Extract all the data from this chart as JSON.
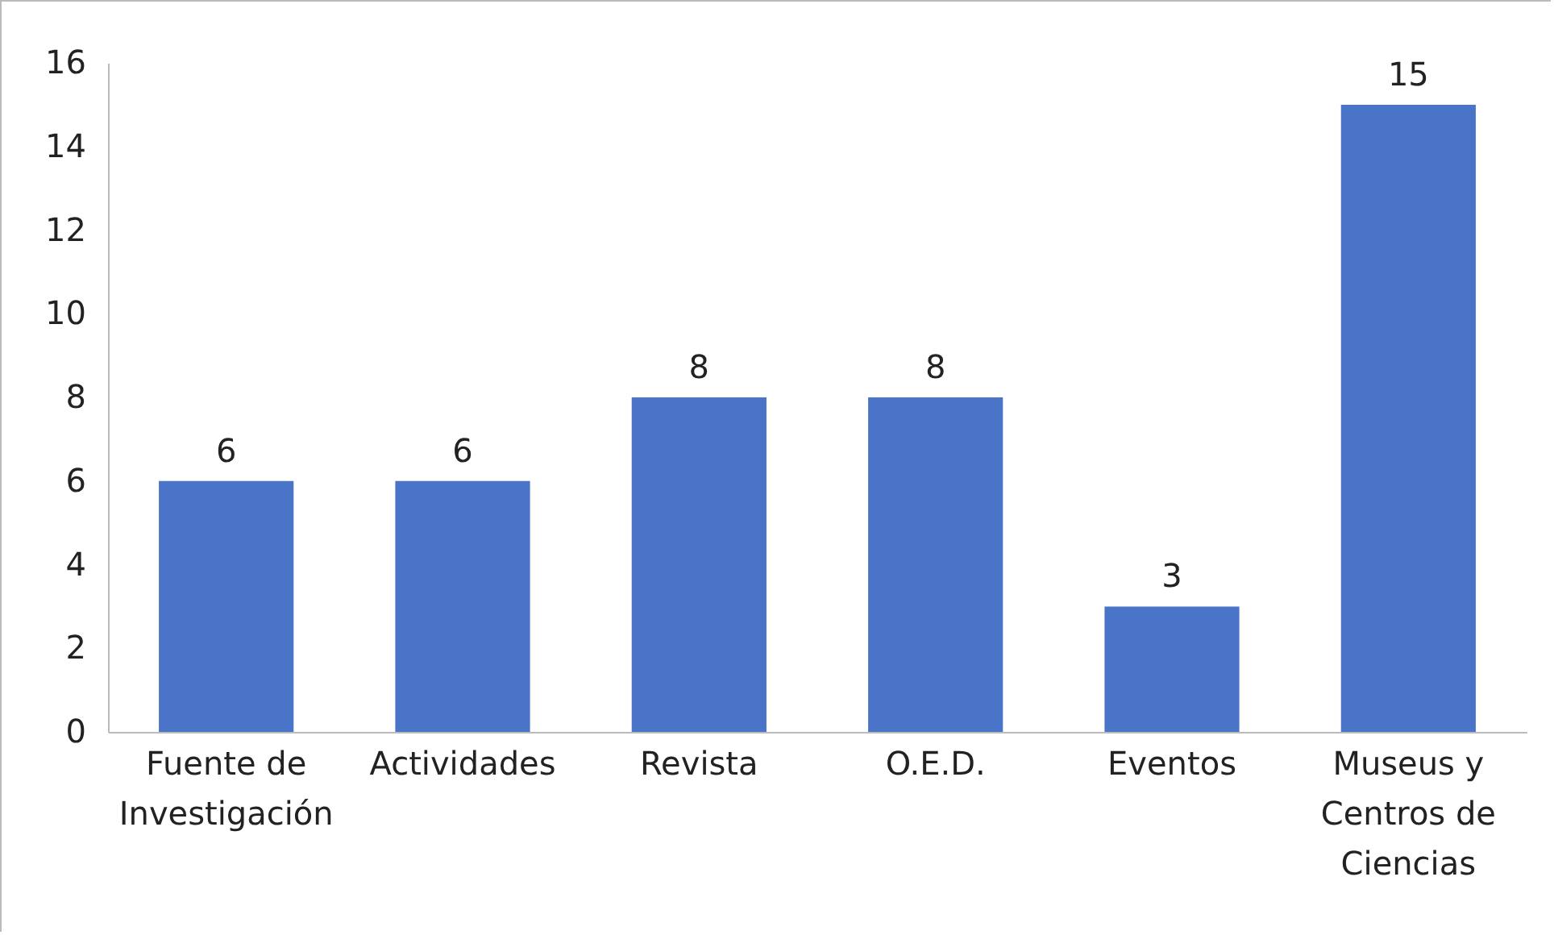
{
  "chart_data": {
    "type": "bar",
    "categories": [
      "Fuente de Investigación",
      "Actividades",
      "Revista",
      "O.E.D.",
      "Eventos",
      "Museus y Centros de Ciencias"
    ],
    "values": [
      6,
      6,
      8,
      8,
      3,
      15
    ],
    "color": "#4a74c8",
    "ylim": [
      0,
      16
    ],
    "yticks": [
      0,
      2,
      4,
      6,
      8,
      10,
      12,
      14,
      16
    ],
    "grid": false,
    "data_labels": true
  }
}
